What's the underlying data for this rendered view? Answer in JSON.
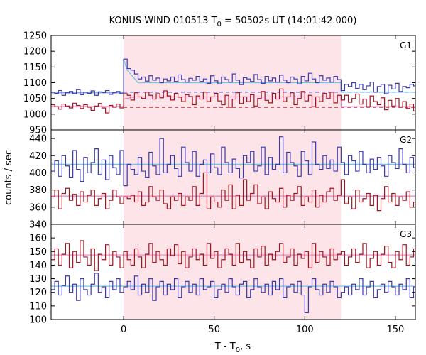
{
  "chart_data": {
    "type": "line",
    "title": {
      "main": "KONUS-WIND 010513 T",
      "sub": "0",
      "rest": " = 50502s UT (14:01:42.000)"
    },
    "xlabel": {
      "main": "T - T",
      "sub": "0",
      "rest": ", s"
    },
    "ylabel": "counts / sec",
    "xlim": [
      -40,
      161
    ],
    "xticks": [
      0,
      50,
      100,
      150
    ],
    "shaded_interval": [
      0,
      120
    ],
    "colors": {
      "red": "#a01520",
      "blue": "#3a3ab0",
      "lightblue": "#76c0ea",
      "pink": "#e87fc8",
      "shade": "#fde4e8"
    },
    "x": [
      -40,
      -38,
      -36,
      -34,
      -32,
      -30,
      -28,
      -26,
      -24,
      -22,
      -20,
      -18,
      -16,
      -14,
      -12,
      -10,
      -8,
      -6,
      -4,
      -2,
      0,
      2,
      4,
      6,
      8,
      10,
      12,
      14,
      16,
      18,
      20,
      22,
      24,
      26,
      28,
      30,
      32,
      34,
      36,
      38,
      40,
      42,
      44,
      46,
      48,
      50,
      52,
      54,
      56,
      58,
      60,
      62,
      64,
      66,
      68,
      70,
      72,
      74,
      76,
      78,
      80,
      82,
      84,
      86,
      88,
      90,
      92,
      94,
      96,
      98,
      100,
      102,
      104,
      106,
      108,
      110,
      112,
      114,
      116,
      118,
      120,
      122,
      124,
      126,
      128,
      130,
      132,
      134,
      136,
      138,
      140,
      142,
      144,
      146,
      148,
      150,
      152,
      154,
      156,
      158,
      160
    ],
    "panels": [
      {
        "label": "G1",
        "ylim": [
          950,
          1250
        ],
        "yticks": [
          950,
          1000,
          1050,
          1100,
          1150,
          1200,
          1250
        ],
        "series": [
          {
            "color": "blue",
            "values": [
              1070,
              1066,
              1075,
              1060,
              1068,
              1072,
              1065,
              1078,
              1062,
              1070,
              1066,
              1074,
              1060,
              1071,
              1069,
              1075,
              1063,
              1068,
              1072,
              1065,
              1175,
              1145,
              1140,
              1128,
              1112,
              1118,
              1105,
              1122,
              1108,
              1115,
              1100,
              1112,
              1106,
              1118,
              1104,
              1125,
              1110,
              1102,
              1114,
              1108,
              1120,
              1104,
              1112,
              1098,
              1122,
              1106,
              1096,
              1118,
              1110,
              1102,
              1128,
              1108,
              1094,
              1116,
              1112,
              1104,
              1126,
              1110,
              1098,
              1120,
              1106,
              1115,
              1102,
              1124,
              1108,
              1100,
              1118,
              1112,
              1096,
              1120,
              1106,
              1130,
              1112,
              1100,
              1122,
              1108,
              1115,
              1102,
              1120,
              1110,
              1075,
              1095,
              1088,
              1100,
              1082,
              1095,
              1078,
              1090,
              1102,
              1070,
              1088,
              1095,
              1065,
              1092,
              1080,
              1098,
              1072,
              1088,
              1084,
              1095,
              1090
            ]
          },
          {
            "color": "red",
            "values": [
              1030,
              1024,
              1016,
              1032,
              1026,
              1020,
              1035,
              1028,
              1018,
              1030,
              1022,
              1012,
              1026,
              1034,
              1020,
              1004,
              1028,
              1022,
              1032,
              1020,
              1065,
              1060,
              1045,
              1068,
              1055,
              1050,
              1070,
              1060,
              1048,
              1065,
              1052,
              1074,
              1058,
              1045,
              1066,
              1054,
              1040,
              1062,
              1056,
              1030,
              1058,
              1048,
              1070,
              1040,
              1055,
              1066,
              1042,
              1030,
              1060,
              1022,
              1048,
              1068,
              1034,
              1055,
              1040,
              1062,
              1026,
              1050,
              1072,
              1044,
              1036,
              1066,
              1048,
              1080,
              1040,
              1055,
              1068,
              1030,
              1050,
              1072,
              1042,
              1060,
              1024,
              1055,
              1040,
              1066,
              1050,
              1070,
              1036,
              1060,
              1045,
              1060,
              1038,
              1050,
              1064,
              1032,
              1048,
              1024,
              1058,
              1040,
              1030,
              1052,
              1014,
              1044,
              1026,
              1050,
              1022,
              1040,
              1018,
              1032,
              1010
            ]
          }
        ],
        "background_lines": [
          {
            "color": "blue",
            "dashed": false,
            "value": 1068,
            "x_range": [
              -40,
              0
            ]
          },
          {
            "color": "blue",
            "dashed": true,
            "value": 1070,
            "x_range": [
              0,
              161
            ]
          },
          {
            "color": "red",
            "dashed": false,
            "value": 1024,
            "x_range": [
              -40,
              0
            ]
          },
          {
            "color": "red",
            "dashed": true,
            "value": 1022,
            "x_range": [
              0,
              161
            ]
          }
        ],
        "fit_lines": [
          {
            "color": "lightblue",
            "points": [
              [
                -40,
                1068
              ],
              [
                0,
                1068
              ],
              [
                0,
                1175
              ],
              [
                2,
                1140
              ],
              [
                8,
                1100
              ],
              [
                120,
                1100
              ],
              [
                120,
                1070
              ],
              [
                161,
                1070
              ]
            ]
          },
          {
            "color": "pink",
            "points": [
              [
                -40,
                1024
              ],
              [
                0,
                1024
              ],
              [
                0,
                1048
              ],
              [
                6,
                1055
              ],
              [
                120,
                1055
              ],
              [
                120,
                1024
              ],
              [
                161,
                1024
              ]
            ]
          }
        ]
      },
      {
        "label": "G2",
        "ylim": [
          340,
          450
        ],
        "yticks": [
          340,
          360,
          380,
          400,
          420,
          440
        ],
        "series": [
          {
            "color": "blue",
            "values": [
              402,
              414,
              396,
              420,
              408,
              395,
              426,
              404,
              390,
              418,
              400,
              412,
              428,
              398,
              415,
              392,
              420,
              406,
              398,
              426,
              385,
              410,
              404,
              398,
              418,
              402,
              395,
              424,
              408,
              398,
              440,
              400,
              410,
              420,
              405,
              396,
              430,
              412,
              402,
              425,
              396,
              410,
              415,
              400,
              422,
              406,
              398,
              430,
              412,
              400,
              416,
              405,
              394,
              420,
              412,
              425,
              402,
              408,
              430,
              398,
              418,
              404,
              410,
              442,
              400,
              424,
              412,
              408,
              396,
              425,
              414,
              398,
              436,
              410,
              404,
              420,
              405,
              415,
              402,
              430,
              412,
              398,
              420,
              414,
              402,
              425,
              410,
              400,
              416,
              404,
              418,
              408,
              396,
              420,
              412,
              405,
              428,
              410,
              400,
              418,
              406
            ]
          },
          {
            "color": "red",
            "values": [
              372,
              380,
              358,
              376,
              382,
              368,
              375,
              362,
              378,
              366,
              374,
              380,
              362,
              370,
              376,
              358,
              368,
              380,
              372,
              364,
              372,
              370,
              374,
              366,
              378,
              362,
              366,
              384,
              372,
              368,
              380,
              364,
              358,
              372,
              368,
              376,
              362,
              372,
              368,
              384,
              362,
              376,
              400,
              358,
              372,
              366,
              360,
              380,
              368,
              386,
              358,
              374,
              362,
              392,
              368,
              376,
              386,
              364,
              372,
              358,
              378,
              370,
              366,
              382,
              360,
              374,
              368,
              376,
              384,
              362,
              372,
              366,
              380,
              360,
              374,
              366,
              378,
              382,
              368,
              374,
              392,
              364,
              372,
              358,
              380,
              366,
              370,
              376,
              362,
              374,
              356,
              370,
              384,
              366,
              376,
              362,
              372,
              368,
              378,
              360,
              366
            ]
          }
        ],
        "fit_lines": [
          {
            "color": "lightblue",
            "points": [
              [
                -40,
                410
              ],
              [
                161,
                410
              ]
            ]
          },
          {
            "color": "pink",
            "points": [
              [
                -40,
                373
              ],
              [
                161,
                373
              ]
            ]
          }
        ]
      },
      {
        "label": "G3",
        "ylim": [
          100,
          170
        ],
        "yticks": [
          100,
          110,
          120,
          130,
          140,
          150,
          160
        ],
        "series": [
          {
            "color": "red",
            "values": [
              144,
              152,
              140,
              148,
              156,
              138,
              150,
              142,
              158,
              146,
              140,
              152,
              136,
              148,
              144,
              155,
              140,
              150,
              146,
              138,
              150,
              144,
              140,
              152,
              146,
              138,
              148,
              156,
              142,
              150,
              144,
              140,
              152,
              147,
              155,
              141,
              150,
              138,
              146,
              152,
              144,
              148,
              140,
              156,
              145,
              150,
              138,
              144,
              152,
              148,
              140,
              156,
              142,
              150,
              144,
              138,
              152,
              146,
              154,
              140,
              148,
              144,
              150,
              156,
              142,
              146,
              152,
              140,
              148,
              145,
              150,
              138,
              156,
              142,
              150,
              146,
              140,
              152,
              144,
              148,
              150,
              140,
              146,
              152,
              142,
              148,
              156,
              138,
              145,
              150,
              140,
              148,
              154,
              142,
              138,
              150,
              144,
              155,
              140,
              146,
              152
            ]
          },
          {
            "color": "blue",
            "values": [
              122,
              128,
              118,
              125,
              132,
              120,
              126,
              114,
              130,
              122,
              118,
              126,
              134,
              120,
              124,
              116,
              128,
              122,
              130,
              120,
              124,
              128,
              122,
              132,
              118,
              126,
              120,
              130,
              114,
              124,
              128,
              118,
              126,
              122,
              130,
              116,
              124,
              128,
              120,
              126,
              118,
              130,
              122,
              124,
              128,
              116,
              122,
              126,
              120,
              130,
              124,
              118,
              126,
              128,
              116,
              122,
              130,
              124,
              120,
              126,
              118,
              128,
              122,
              130,
              116,
              124,
              126,
              120,
              128,
              118,
              105,
              124,
              130,
              122,
              118,
              126,
              120,
              128,
              124,
              116,
              120,
              124,
              118,
              126,
              122,
              130,
              118,
              124,
              128,
              116,
              122,
              126,
              120,
              128,
              124,
              118,
              126,
              122,
              130,
              116,
              124
            ]
          }
        ],
        "fit_lines": [
          {
            "color": "pink",
            "points": [
              [
                -40,
                147.5
              ],
              [
                161,
                147.5
              ]
            ]
          },
          {
            "color": "lightblue",
            "points": [
              [
                -40,
                124.5
              ],
              [
                161,
                124.5
              ]
            ]
          }
        ]
      }
    ]
  }
}
